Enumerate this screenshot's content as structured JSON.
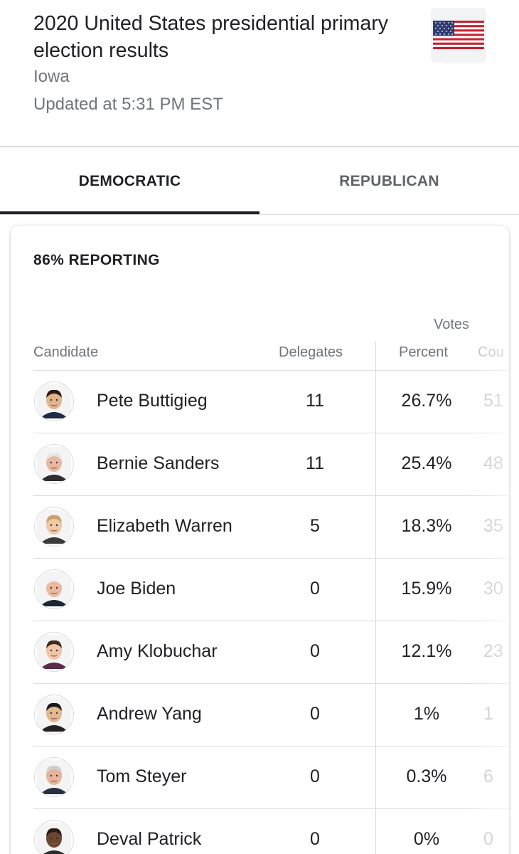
{
  "header": {
    "title": "2020 United States presidential primary election results",
    "location": "Iowa",
    "updated": "Updated at 5:31 PM EST",
    "flag_icon": "us-flag-icon"
  },
  "tabs": [
    {
      "label": "DEMOCRATIC",
      "selected": true
    },
    {
      "label": "REPUBLICAN",
      "selected": false
    }
  ],
  "results": {
    "reporting": "86% REPORTING",
    "votes_group_label": "Votes",
    "columns": {
      "candidate": "Candidate",
      "delegates": "Delegates",
      "percent": "Percent",
      "count": "Cou"
    },
    "rows": [
      {
        "name": "Pete Buttigieg",
        "delegates": "11",
        "percent": "26.7%",
        "count": "51",
        "skin": "#e2b58f",
        "hair": "#2b1d14",
        "shirt": "#1f2a44"
      },
      {
        "name": "Bernie Sanders",
        "delegates": "11",
        "percent": "25.4%",
        "count": "48",
        "skin": "#e8b8a0",
        "hair": "#e6e6e6",
        "shirt": "#2d2d33"
      },
      {
        "name": "Elizabeth Warren",
        "delegates": "5",
        "percent": "18.3%",
        "count": "35",
        "skin": "#f0c8a8",
        "hair": "#c9a06a",
        "shirt": "#3b3b3b"
      },
      {
        "name": "Joe Biden",
        "delegates": "0",
        "percent": "15.9%",
        "count": "30",
        "skin": "#e9b9a0",
        "hair": "#f2f2f2",
        "shirt": "#1c2533"
      },
      {
        "name": "Amy Klobuchar",
        "delegates": "0",
        "percent": "12.1%",
        "count": "23",
        "skin": "#f1c4a8",
        "hair": "#3e2a1f",
        "shirt": "#5a2b4a"
      },
      {
        "name": "Andrew Yang",
        "delegates": "0",
        "percent": "1%",
        "count": "1",
        "skin": "#e3b890",
        "hair": "#1a1a1a",
        "shirt": "#222222"
      },
      {
        "name": "Tom Steyer",
        "delegates": "0",
        "percent": "0.3%",
        "count": "6",
        "skin": "#e6b49a",
        "hair": "#cfcfcf",
        "shirt": "#26303f"
      },
      {
        "name": "Deval Patrick",
        "delegates": "0",
        "percent": "0%",
        "count": "0",
        "skin": "#6b4630",
        "hair": "#2a1a12",
        "shirt": "#2b2b2b"
      }
    ]
  }
}
